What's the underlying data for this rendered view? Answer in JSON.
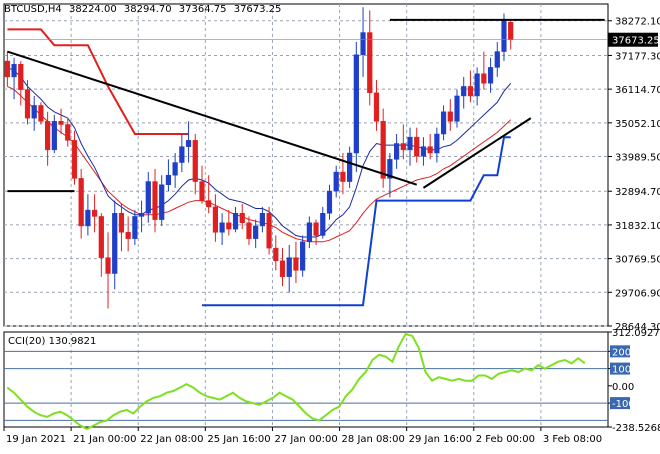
{
  "chart_data": [
    {
      "type": "candlestick",
      "symbol": "BTCUSD,H4",
      "ohlc_readout": [
        "38224.00",
        "38294.70",
        "37364.75",
        "37673.25"
      ],
      "current_price_label": "37673.25",
      "price_ticks": [
        "38272.10",
        "37177.30",
        "36114.70",
        "35052.10",
        "33989.50",
        "32894.70",
        "31832.10",
        "30769.50",
        "29706.90",
        "28644.30"
      ],
      "time_ticks": [
        "19 Jan 2021",
        "21 Jan 00:00",
        "22 Jan 08:00",
        "25 Jan 16:00",
        "27 Jan 00:00",
        "28 Jan 08:00",
        "29 Jan 16:00",
        "2 Feb 00:00",
        "3 Feb 08:00"
      ],
      "ylim": [
        28644.3,
        38800
      ],
      "grid": true,
      "candles": [
        [
          37000,
          37300,
          36200,
          36500
        ],
        [
          36500,
          37100,
          35800,
          36900
        ],
        [
          36900,
          37000,
          35600,
          36100
        ],
        [
          36100,
          36400,
          35000,
          35200
        ],
        [
          35200,
          35900,
          34800,
          35600
        ],
        [
          35600,
          35700,
          35000,
          35100
        ],
        [
          35100,
          35400,
          33700,
          34200
        ],
        [
          34200,
          35300,
          34100,
          35100
        ],
        [
          35100,
          35500,
          34700,
          35000
        ],
        [
          35000,
          35200,
          34300,
          34500
        ],
        [
          34500,
          34800,
          33100,
          33300
        ],
        [
          33300,
          33600,
          31400,
          31800
        ],
        [
          31800,
          32800,
          31500,
          32300
        ],
        [
          32300,
          32800,
          31600,
          32100
        ],
        [
          32100,
          32200,
          30200,
          30800
        ],
        [
          30800,
          31600,
          29200,
          30300
        ],
        [
          30300,
          32600,
          29800,
          32200
        ],
        [
          32200,
          32500,
          31000,
          31600
        ],
        [
          31600,
          32100,
          31000,
          31400
        ],
        [
          31400,
          32300,
          31200,
          32100
        ],
        [
          32100,
          32600,
          31600,
          32200
        ],
        [
          32200,
          33500,
          31900,
          33200
        ],
        [
          33200,
          33600,
          31600,
          32000
        ],
        [
          32000,
          33400,
          31800,
          33100
        ],
        [
          33100,
          33900,
          32900,
          33400
        ],
        [
          33400,
          34100,
          33000,
          33800
        ],
        [
          33800,
          34700,
          33500,
          34300
        ],
        [
          34300,
          35100,
          33800,
          34500
        ],
        [
          34500,
          34700,
          32800,
          33200
        ],
        [
          33200,
          33700,
          32500,
          32600
        ],
        [
          32600,
          33400,
          32200,
          32400
        ],
        [
          32400,
          32800,
          31300,
          31600
        ],
        [
          31600,
          32200,
          31200,
          31900
        ],
        [
          31900,
          32300,
          31500,
          31700
        ],
        [
          31700,
          32400,
          31600,
          32200
        ],
        [
          32200,
          32500,
          31700,
          31900
        ],
        [
          31900,
          32100,
          31200,
          31400
        ],
        [
          31400,
          32000,
          31100,
          31800
        ],
        [
          31800,
          32400,
          31600,
          32200
        ],
        [
          32200,
          32400,
          30900,
          31100
        ],
        [
          31100,
          31500,
          30400,
          30700
        ],
        [
          30700,
          31100,
          29900,
          30200
        ],
        [
          30200,
          31200,
          29700,
          30800
        ],
        [
          30800,
          31300,
          30000,
          30400
        ],
        [
          30400,
          31500,
          30200,
          31300
        ],
        [
          31300,
          32100,
          31100,
          31900
        ],
        [
          31900,
          32000,
          31200,
          31500
        ],
        [
          31500,
          32400,
          31400,
          32200
        ],
        [
          32200,
          33100,
          32000,
          32900
        ],
        [
          32900,
          33700,
          32700,
          33500
        ],
        [
          33500,
          34100,
          32800,
          33200
        ],
        [
          33200,
          34300,
          33000,
          34100
        ],
        [
          34100,
          37600,
          33500,
          37200
        ],
        [
          37200,
          38700,
          36500,
          37900
        ],
        [
          37900,
          38600,
          35600,
          36000
        ],
        [
          36000,
          36400,
          34800,
          35100
        ],
        [
          35100,
          35500,
          33000,
          33300
        ],
        [
          33300,
          34100,
          32700,
          33900
        ],
        [
          33900,
          34700,
          33600,
          34400
        ],
        [
          34400,
          35000,
          33900,
          34200
        ],
        [
          34200,
          34900,
          33700,
          34600
        ],
        [
          34600,
          34900,
          33800,
          34000
        ],
        [
          34000,
          34600,
          33700,
          34300
        ],
        [
          34300,
          34700,
          33900,
          34100
        ],
        [
          34100,
          34900,
          33800,
          34700
        ],
        [
          34700,
          35600,
          34500,
          35400
        ],
        [
          35400,
          35800,
          34800,
          35100
        ],
        [
          35100,
          36100,
          34900,
          35900
        ],
        [
          35900,
          36500,
          35500,
          36200
        ],
        [
          36200,
          36700,
          35700,
          35900
        ],
        [
          35900,
          36800,
          35600,
          36600
        ],
        [
          36600,
          37300,
          36100,
          36300
        ],
        [
          36300,
          37100,
          36000,
          36800
        ],
        [
          36800,
          37600,
          36500,
          37300
        ],
        [
          37300,
          38500,
          37000,
          38300
        ],
        [
          38224,
          38294.7,
          37364.75,
          37673.25
        ]
      ],
      "ma_fast": [
        36800,
        36700,
        36500,
        36200,
        36000,
        35800,
        35550,
        35400,
        35300,
        35200,
        34900,
        34400,
        34000,
        33650,
        33200,
        32750,
        32550,
        32400,
        32250,
        32150,
        32150,
        32300,
        32350,
        32450,
        32600,
        32800,
        33050,
        33250,
        33300,
        33250,
        33150,
        32950,
        32800,
        32650,
        32600,
        32550,
        32450,
        32350,
        32350,
        32250,
        32050,
        31800,
        31650,
        31500,
        31450,
        31450,
        31450,
        31550,
        31750,
        32000,
        32150,
        32400,
        33000,
        33700,
        34150,
        34400,
        34350,
        34350,
        34350,
        34350,
        34350,
        34300,
        34250,
        34200,
        34200,
        34300,
        34350,
        34500,
        34700,
        34900,
        35100,
        35300,
        35500,
        35700,
        36050,
        36300
      ],
      "ma_slow": [
        36200,
        36100,
        35900,
        35700,
        35500,
        35300,
        35100,
        34900,
        34750,
        34600,
        34400,
        34100,
        33800,
        33500,
        33200,
        32900,
        32700,
        32500,
        32350,
        32250,
        32150,
        32150,
        32150,
        32200,
        32250,
        32350,
        32450,
        32550,
        32600,
        32600,
        32550,
        32450,
        32350,
        32250,
        32150,
        32100,
        32000,
        31950,
        31900,
        31850,
        31750,
        31600,
        31500,
        31400,
        31350,
        31300,
        31300,
        31300,
        31350,
        31450,
        31550,
        31650,
        31900,
        32200,
        32450,
        32650,
        32750,
        32850,
        32950,
        33050,
        33150,
        33250,
        33300,
        33350,
        33450,
        33600,
        33700,
        33850,
        34000,
        34150,
        34300,
        34450,
        34600,
        34750,
        34950,
        35150
      ],
      "channel_upper": [
        [
          0,
          38000
        ],
        [
          5,
          38000
        ],
        [
          7,
          37500
        ],
        [
          12,
          37500
        ],
        [
          15,
          36200
        ],
        [
          19,
          34700
        ],
        [
          27,
          34700
        ]
      ],
      "channel_lower": [
        [
          29,
          29300
        ],
        [
          39,
          29300
        ],
        [
          45,
          29300
        ],
        [
          53,
          29300
        ],
        [
          55,
          32600
        ],
        [
          69,
          32600
        ],
        [
          71,
          33400
        ],
        [
          73,
          33400
        ],
        [
          74,
          34600
        ],
        [
          75,
          34600
        ]
      ],
      "trendlines": [
        {
          "from": [
            0,
            37300
          ],
          "to": [
            61,
            33100
          ]
        },
        {
          "from": [
            62,
            33000
          ],
          "to": [
            78,
            35200
          ]
        },
        {
          "from": [
            57,
            38300
          ],
          "to": [
            89,
            38300
          ]
        },
        {
          "from": [
            0,
            32900
          ],
          "to": [
            10,
            32900
          ]
        }
      ]
    },
    {
      "type": "line",
      "series": [
        {
          "name": "CCI(20) 130.9821",
          "values": [
            -10,
            -40,
            -80,
            -120,
            -150,
            -170,
            -180,
            -160,
            -150,
            -170,
            -200,
            -230,
            -250,
            -230,
            -210,
            -200,
            -170,
            -150,
            -140,
            -160,
            -120,
            -90,
            -70,
            -60,
            -40,
            -30,
            -10,
            10,
            -10,
            -40,
            -60,
            -70,
            -80,
            -60,
            -40,
            -70,
            -90,
            -100,
            -110,
            -90,
            -70,
            -40,
            -60,
            -80,
            -120,
            -160,
            -190,
            -200,
            -170,
            -140,
            -120,
            -60,
            -20,
            40,
            80,
            150,
            180,
            170,
            140,
            230,
            300,
            290,
            220,
            80,
            30,
            50,
            40,
            30,
            40,
            30,
            30,
            60,
            60,
            40,
            70,
            80,
            90,
            80,
            100,
            90,
            120,
            100,
            120,
            140,
            150,
            130,
            160,
            131
          ]
        }
      ],
      "title": "CCI(20) 130.9821",
      "yticks": [
        "312.0927",
        "200",
        "100",
        "0.00",
        "-100",
        "-238.5268"
      ],
      "ylim": [
        -238.5268,
        312.0927
      ],
      "levels": [
        200,
        100,
        -100,
        -200
      ],
      "grid": true
    }
  ],
  "colors": {
    "bull": "#1f3fc7",
    "bear": "#e02020",
    "ma_fast": "#1a2aa0",
    "ma_slow": "#e02020",
    "channel_upper": "#e02020",
    "channel_lower": "#1040d0",
    "trendline": "#000000",
    "cci": "#7ee020",
    "cci_level": "#4a6fa0",
    "grid": "#9aa4b4",
    "price_label_bg": "#000000"
  }
}
